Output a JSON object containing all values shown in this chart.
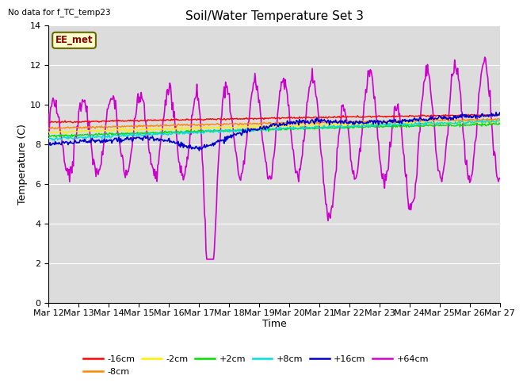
{
  "title": "Soil/Water Temperature Set 3",
  "xlabel": "Time",
  "ylabel": "Temperature (C)",
  "no_data_text": "No data for f_TC_temp23",
  "annotation_text": "EE_met",
  "ylim": [
    0,
    14
  ],
  "yticks": [
    0,
    2,
    4,
    6,
    8,
    10,
    12,
    14
  ],
  "xtick_labels": [
    "Mar 12",
    "Mar 13",
    "Mar 14",
    "Mar 15",
    "Mar 16",
    "Mar 17",
    "Mar 18",
    "Mar 19",
    "Mar 20",
    "Mar 21",
    "Mar 22",
    "Mar 23",
    "Mar 24",
    "Mar 25",
    "Mar 26",
    "Mar 27"
  ],
  "series_colors": {
    "-16cm": "#ff0000",
    "-8cm": "#ff8800",
    "-2cm": "#ffee00",
    "+2cm": "#00dd00",
    "+8cm": "#00dddd",
    "+16cm": "#0000cc",
    "+64cm": "#cc00cc"
  },
  "plot_bg_color": "#dcdcdc",
  "grid_color": "#ffffff",
  "title_fontsize": 11,
  "axis_label_fontsize": 9,
  "tick_fontsize": 8
}
